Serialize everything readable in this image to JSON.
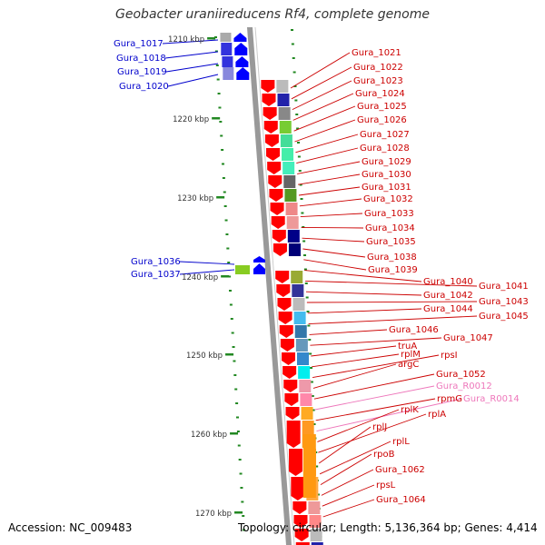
{
  "title": "Geobacter uraniireducens Rf4, complete genome",
  "accession": "Accession: NC_009483",
  "topology": "Topology: circular; Length: 5,136,364 bp; Genes: 4,414",
  "colors": {
    "forward_label": "#0000cc",
    "reverse_label": "#cc0000",
    "rna_label": "#ee77bb",
    "forward_gene": "#0000ff",
    "reverse_gene": "#ff0000",
    "tick": "#228822",
    "backbone": "#999999"
  },
  "ticks": [
    "1210 kbp",
    "1220 kbp",
    "1230 kbp",
    "1240 kbp",
    "1250 kbp",
    "1260 kbp",
    "1270 kbp"
  ],
  "forward_labels": [
    "Gura_1017",
    "Gura_1018",
    "Gura_1019",
    "Gura_1020",
    "Gura_1036",
    "Gura_1037"
  ],
  "reverse_labels": [
    "Gura_1021",
    "Gura_1022",
    "Gura_1023",
    "Gura_1024",
    "Gura_1025",
    "Gura_1026",
    "Gura_1027",
    "Gura_1028",
    "Gura_1029",
    "Gura_1030",
    "Gura_1031",
    "Gura_1032",
    "Gura_1033",
    "Gura_1034",
    "Gura_1035",
    "Gura_1038",
    "Gura_1039",
    "Gura_1040",
    "Gura_1041",
    "Gura_1042",
    "Gura_1043",
    "Gura_1044",
    "Gura_1045",
    "Gura_1046",
    "Gura_1047",
    "truA",
    "rplM",
    "rpsI",
    "argC",
    "Gura_1052",
    "Gura_R0012",
    "rpmG",
    "Gura_R0014",
    "rplK",
    "rplA",
    "rplJ",
    "rplL",
    "rpoB",
    "Gura_1062",
    "rpsL",
    "Gura_1064"
  ],
  "rna_labels": [
    "Gura_R0012",
    "Gura_R0014"
  ]
}
